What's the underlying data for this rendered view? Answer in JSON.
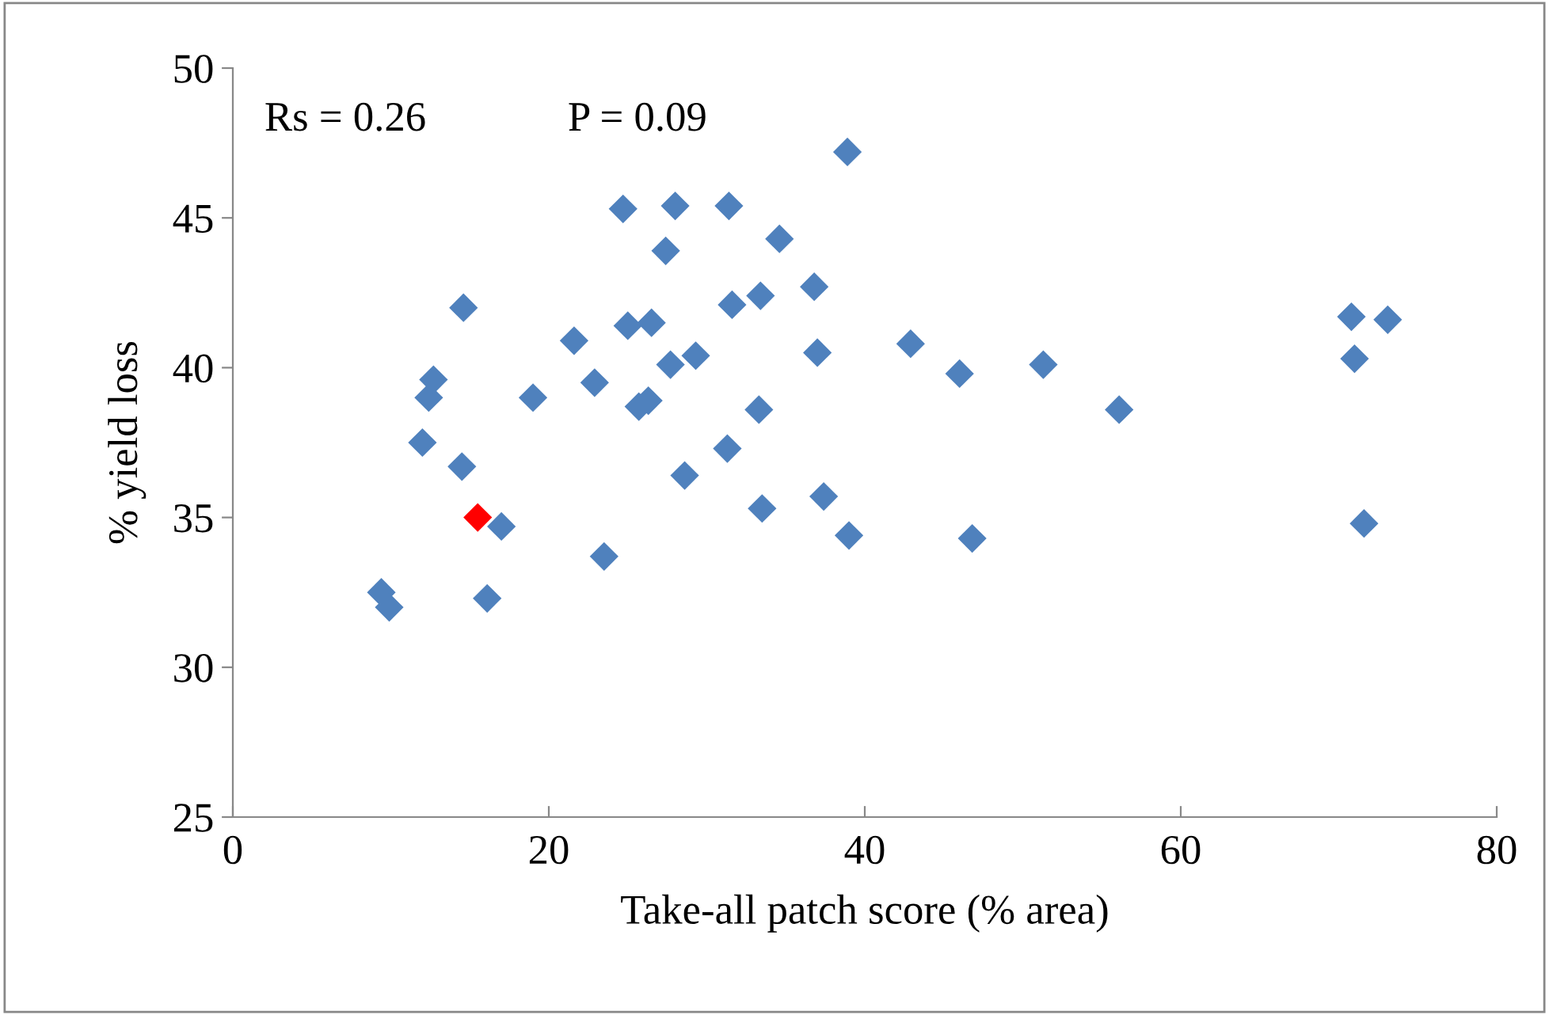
{
  "chart_data": {
    "type": "scatter",
    "xlabel": "Take-all patch score (% area)",
    "ylabel": "% yield loss",
    "annotations": [
      "Rs = 0.26",
      "P = 0.09"
    ],
    "xlim": [
      0,
      80
    ],
    "xticks": [
      0,
      20,
      40,
      60,
      80
    ],
    "ylim": [
      25,
      50
    ],
    "yticks": [
      25,
      30,
      35,
      40,
      45,
      50
    ],
    "grid": false,
    "legend": false,
    "marker": "diamond",
    "series": [
      {
        "color": "#4f81bd",
        "x": [
          9.4,
          9.9,
          12.0,
          12.4,
          12.7,
          14.6,
          14.5,
          16.1,
          17.0,
          19.0,
          21.6,
          22.9,
          23.5,
          24.7,
          25.0,
          25.7,
          26.3,
          26.5,
          27.4,
          27.7,
          28.0,
          28.6,
          29.3,
          31.3,
          31.4,
          31.6,
          33.3,
          33.4,
          33.5,
          34.6,
          36.8,
          37.0,
          37.4,
          38.9,
          39.0,
          42.9,
          46.0,
          46.8,
          51.3,
          56.1,
          70.8,
          71.0,
          71.6,
          73.1
        ],
        "values": [
          32.5,
          32.0,
          37.5,
          39.0,
          39.6,
          42.0,
          36.7,
          32.3,
          34.7,
          39.0,
          40.9,
          39.5,
          33.7,
          45.3,
          41.4,
          38.7,
          38.9,
          41.5,
          43.9,
          40.1,
          45.4,
          36.4,
          40.4,
          37.3,
          45.4,
          42.1,
          38.6,
          42.4,
          35.3,
          44.3,
          42.7,
          40.5,
          35.7,
          47.2,
          34.4,
          40.8,
          39.8,
          34.3,
          40.1,
          38.6,
          41.7,
          40.3,
          34.8,
          41.6
        ]
      },
      {
        "color": "#ff0000",
        "x": [
          15.5
        ],
        "values": [
          35.0
        ]
      }
    ]
  }
}
